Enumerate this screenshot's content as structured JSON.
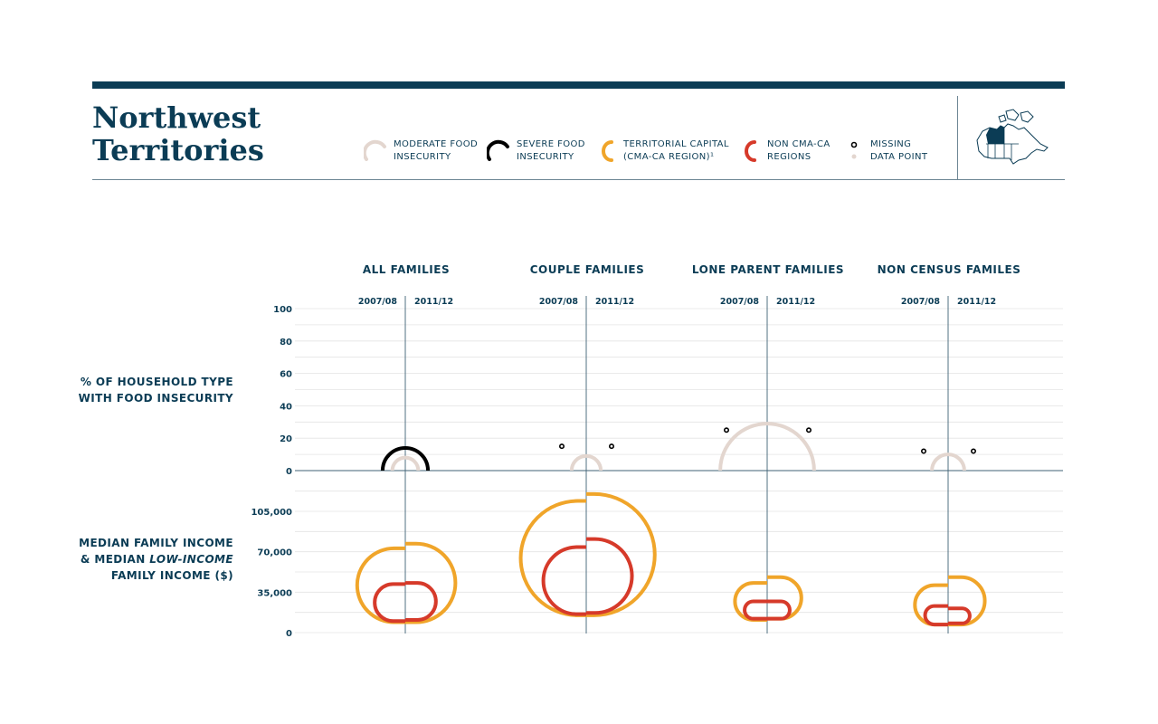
{
  "header": {
    "title_line1": "Northwest",
    "title_line2": "Territories"
  },
  "legend": [
    {
      "id": "moderate",
      "line1": "MODERATE FOOD",
      "line2": "INSECURITY",
      "color": "#e3d6cf",
      "shape": "semicircle-arc"
    },
    {
      "id": "severe",
      "line1": "SEVERE FOOD",
      "line2": "INSECURITY",
      "color": "#000000",
      "shape": "semicircle-arc"
    },
    {
      "id": "capital",
      "line1": "TERRITORIAL CAPITAL",
      "line2": "(CMA-CA REGION)¹",
      "color": "#f0a52a",
      "shape": "c-arc"
    },
    {
      "id": "noncma",
      "line1": "NON CMA-CA",
      "line2": "REGIONS",
      "color": "#d63a2a",
      "shape": "c-arc"
    },
    {
      "id": "missing",
      "line1": "MISSING",
      "line2": "DATA POINT",
      "color": "#000000",
      "shape": "dots"
    }
  ],
  "map": {
    "icon": "canada-map-icon",
    "highlight_color": "#0b3c55"
  },
  "chart_data": {
    "type": "semicircle-bubble",
    "columns": [
      "ALL FAMILIES",
      "COUPLE FAMILIES",
      "LONE PARENT FAMILIES",
      "NON CENSUS FAMILES"
    ],
    "periods": [
      "2007/08",
      "2011/12"
    ],
    "row_labels": {
      "food": [
        "% OF HOUSEHOLD TYPE",
        "WITH FOOD INSECURITY"
      ],
      "income": [
        "MEDIAN FAMILY INCOME",
        "& MEDIAN ",
        "LOW-INCOME",
        "FAMILY INCOME ($)"
      ]
    },
    "food_axis": {
      "ticks": [
        0,
        20,
        40,
        60,
        80,
        100
      ],
      "ylim": [
        0,
        100
      ]
    },
    "income_axis": {
      "ticks": [
        0,
        35000,
        70000,
        105000
      ],
      "tick_labels": [
        "0",
        "35,000",
        "70,000",
        "105,000"
      ],
      "ylim": [
        0,
        120000
      ]
    },
    "colors": {
      "moderate": "#e3d6cf",
      "severe": "#000000",
      "capital": "#f0a52a",
      "noncma": "#d63a2a",
      "missing": "#000000"
    },
    "food_insecurity": [
      {
        "column": "ALL FAMILIES",
        "moderate": [
          8,
          8
        ],
        "severe": [
          14,
          14
        ],
        "missing": [
          null,
          null
        ]
      },
      {
        "column": "COUPLE FAMILIES",
        "moderate": [
          9,
          9
        ],
        "severe": [
          null,
          null
        ],
        "missing": [
          15,
          15
        ]
      },
      {
        "column": "LONE PARENT FAMILIES",
        "moderate": [
          29,
          29
        ],
        "severe": [
          null,
          null
        ],
        "missing": [
          25,
          25
        ]
      },
      {
        "column": "NON CENSUS FAMILES",
        "moderate": [
          10,
          10
        ],
        "severe": [
          null,
          null
        ],
        "missing": [
          12,
          12
        ]
      }
    ],
    "median_income": [
      {
        "column": "ALL FAMILIES",
        "capital": {
          "median": [
            73000,
            77000
          ],
          "low_income": [
            9000,
            9000
          ]
        },
        "noncma": {
          "median": [
            42000,
            43000
          ],
          "low_income": [
            10000,
            11000
          ]
        }
      },
      {
        "column": "COUPLE FAMILIES",
        "capital": {
          "median": [
            114000,
            120000
          ],
          "low_income": [
            15000,
            15000
          ]
        },
        "noncma": {
          "median": [
            74000,
            81000
          ],
          "low_income": [
            16000,
            17000
          ]
        }
      },
      {
        "column": "LONE PARENT FAMILIES",
        "capital": {
          "median": [
            43000,
            48000
          ],
          "low_income": [
            11000,
            12000
          ]
        },
        "noncma": {
          "median": [
            27000,
            27000
          ],
          "low_income": [
            12000,
            12000
          ]
        }
      },
      {
        "column": "NON CENSUS FAMILES",
        "capital": {
          "median": [
            41000,
            48000
          ],
          "low_income": [
            7000,
            7000
          ]
        },
        "noncma": {
          "median": [
            23000,
            21000
          ],
          "low_income": [
            7000,
            8000
          ]
        }
      }
    ]
  }
}
